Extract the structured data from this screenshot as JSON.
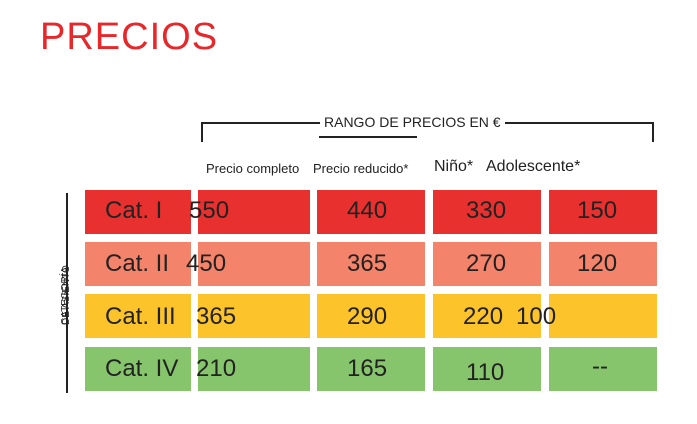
{
  "title": "PRECIOS",
  "range_label": "RANGO DE PRECIOS EN €",
  "axis_label_1": "CATEGORÍA",
  "axis_label_2": "DE ASIENTO",
  "columns": {
    "full": "Precio completo",
    "reduced": "Precio reducido*",
    "child": "Niño*",
    "teen": "Adolescente*"
  },
  "rows": [
    {
      "name": "Cat. I",
      "full": "550",
      "reduced": "440",
      "child": "330",
      "teen": "150",
      "color": "#e8302e"
    },
    {
      "name": "Cat. II",
      "full": "450",
      "reduced": "365",
      "child": "270",
      "teen": "120",
      "color": "#f4836b"
    },
    {
      "name": "Cat. III",
      "full": "365",
      "reduced": "290",
      "child": "220",
      "teen": "100",
      "color": "#fcc32b"
    },
    {
      "name": "Cat. IV",
      "full": "210",
      "reduced": "165",
      "child": "110",
      "teen": "--",
      "color": "#86c56c"
    }
  ]
}
